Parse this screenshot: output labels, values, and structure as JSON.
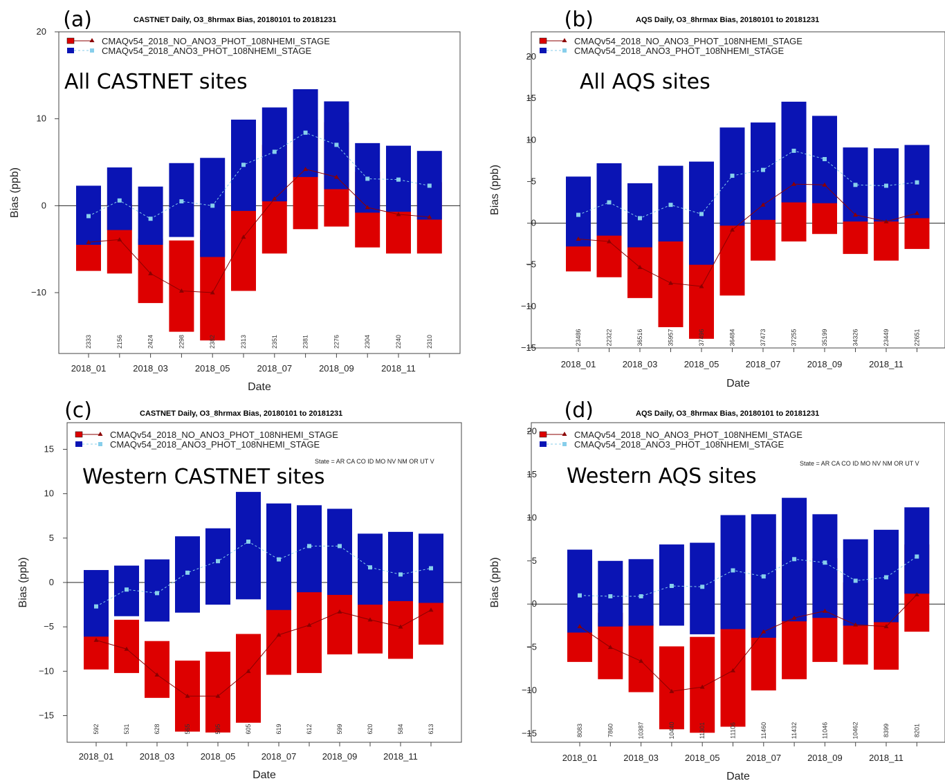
{
  "legend": {
    "series_red": "CMAQv54_2018_NO_ANO3_PHOT_108NHEMI_STAGE",
    "series_blue": "CMAQv54_2018_ANO3_PHOT_108NHEMI_STAGE"
  },
  "colors": {
    "red_box": "#dd0000",
    "blue_box": "#0a14b4",
    "red_line": "#8b0000",
    "blue_line": "#87ceeb"
  },
  "chart_data": [
    {
      "type": "bar",
      "panel_label": "(a)",
      "title": "CASTNET Daily, O3_8hrmax Bias, 20180101 to 20181231",
      "annotation": "All CASTNET sites",
      "xlabel": "Date",
      "ylabel": "Bias (ppb)",
      "ylim": [
        -17,
        20
      ],
      "yticks": [
        -10,
        0,
        10,
        20
      ],
      "xtick_labels": [
        "2018_01",
        "2018_03",
        "2018_05",
        "2018_07",
        "2018_09",
        "2018_11"
      ],
      "categories": [
        "2018_01",
        "2018_02",
        "2018_03",
        "2018_04",
        "2018_05",
        "2018_06",
        "2018_07",
        "2018_08",
        "2018_09",
        "2018_10",
        "2018_11",
        "2018_12"
      ],
      "counts": [
        "2333",
        "2156",
        "2424",
        "2298",
        "2382",
        "2313",
        "2351",
        "2381",
        "2276",
        "2304",
        "2240",
        "2310"
      ],
      "series": [
        {
          "name": "CMAQv54_2018_NO_ANO3_PHOT_108NHEMI_STAGE",
          "low": [
            -7.5,
            -7.8,
            -11.2,
            -14.5,
            -15.5,
            -9.8,
            -5.5,
            -2.7,
            -2.4,
            -4.8,
            -5.5,
            -5.5
          ],
          "high": [
            -0.5,
            0.2,
            -3.8,
            -4.0,
            -2.8,
            3.6,
            7.0,
            9.9,
            9.6,
            3.9,
            3.1,
            2.7
          ],
          "median": [
            -4.2,
            -3.9,
            -7.8,
            -9.8,
            -10.0,
            -3.6,
            0.8,
            4.2,
            3.3,
            -0.2,
            -1.0,
            -1.3
          ]
        },
        {
          "name": "CMAQv54_2018_ANO3_PHOT_108NHEMI_STAGE",
          "low": [
            -4.5,
            -2.8,
            -4.5,
            -3.6,
            -5.9,
            -0.6,
            0.5,
            3.3,
            1.9,
            -0.8,
            -0.7,
            -1.6
          ],
          "high": [
            2.3,
            4.4,
            2.2,
            4.9,
            5.5,
            9.9,
            11.3,
            13.4,
            12.0,
            7.2,
            6.9,
            6.3
          ],
          "median": [
            -1.2,
            0.6,
            -1.5,
            0.5,
            0.0,
            4.7,
            6.2,
            8.4,
            7.0,
            3.1,
            3.0,
            2.3
          ]
        }
      ]
    },
    {
      "type": "bar",
      "panel_label": "(b)",
      "title": "AQS Daily, O3_8hrmax Bias, 20180101 to 20181231",
      "annotation": "All AQS sites",
      "xlabel": "Date",
      "ylabel": "Bias (ppb)",
      "ylim": [
        -15,
        23
      ],
      "yticks": [
        -15,
        -10,
        -5,
        0,
        5,
        10,
        15,
        20
      ],
      "xtick_labels": [
        "2018_01",
        "2018_03",
        "2018_05",
        "2018_07",
        "2018_09",
        "2018_11"
      ],
      "categories": [
        "2018_01",
        "2018_02",
        "2018_03",
        "2018_04",
        "2018_05",
        "2018_06",
        "2018_07",
        "2018_08",
        "2018_09",
        "2018_10",
        "2018_11",
        "2018_12"
      ],
      "counts": [
        "23486",
        "22322",
        "36516",
        "35957",
        "37496",
        "36484",
        "37473",
        "37255",
        "35199",
        "34326",
        "23449",
        "22651"
      ],
      "series": [
        {
          "name": "CMAQv54_2018_NO_ANO3_PHOT_108NHEMI_STAGE",
          "low": [
            -5.8,
            -6.5,
            -9.0,
            -12.5,
            -13.9,
            -8.7,
            -4.5,
            -2.2,
            -1.3,
            -3.7,
            -4.5,
            -3.1
          ],
          "high": [
            2.8,
            2.4,
            -0.9,
            -1.5,
            0.0,
            6.3,
            8.3,
            10.9,
            10.5,
            5.7,
            4.9,
            5.8
          ],
          "median": [
            -1.9,
            -2.2,
            -5.3,
            -7.2,
            -7.6,
            -0.8,
            2.2,
            4.7,
            4.6,
            1.0,
            0.2,
            1.2
          ]
        },
        {
          "name": "CMAQv54_2018_ANO3_PHOT_108NHEMI_STAGE",
          "low": [
            -2.8,
            -1.5,
            -2.9,
            -2.2,
            -5.0,
            -0.3,
            0.4,
            2.5,
            2.4,
            0.2,
            0.2,
            0.6
          ],
          "high": [
            5.6,
            7.2,
            4.8,
            6.9,
            7.4,
            11.5,
            12.1,
            14.6,
            12.9,
            9.1,
            9.0,
            9.4
          ],
          "median": [
            1.0,
            2.5,
            0.6,
            2.2,
            1.1,
            5.7,
            6.4,
            8.7,
            7.7,
            4.6,
            4.5,
            4.9
          ]
        }
      ]
    },
    {
      "type": "bar",
      "panel_label": "(c)",
      "title": "CASTNET Daily, O3_8hrmax Bias, 20180101 to 20181231",
      "annotation": "Western CASTNET sites",
      "state_note": "State = AR CA CO ID MO NV NM OR UT V",
      "xlabel": "Date",
      "ylabel": "Bias (ppb)",
      "ylim": [
        -18,
        18
      ],
      "yticks": [
        -15,
        -10,
        -5,
        0,
        5,
        10,
        15
      ],
      "xtick_labels": [
        "2018_01",
        "2018_03",
        "2018_05",
        "2018_07",
        "2018_09",
        "2018_11"
      ],
      "categories": [
        "2018_01",
        "2018_02",
        "2018_03",
        "2018_04",
        "2018_05",
        "2018_06",
        "2018_07",
        "2018_08",
        "2018_09",
        "2018_10",
        "2018_11",
        "2018_12"
      ],
      "counts": [
        "592",
        "531",
        "628",
        "565",
        "595",
        "605",
        "619",
        "612",
        "599",
        "620",
        "584",
        "613"
      ],
      "series": [
        {
          "name": "CMAQv54_2018_NO_ANO3_PHOT_108NHEMI_STAGE",
          "low": [
            -9.8,
            -10.2,
            -13.0,
            -16.8,
            -16.9,
            -15.8,
            -10.4,
            -10.2,
            -8.1,
            -8.0,
            -8.6,
            -7.0
          ],
          "high": [
            -3.0,
            -4.2,
            -6.6,
            -8.8,
            -7.8,
            -5.8,
            -1.3,
            -0.7,
            0.5,
            -0.3,
            -0.4,
            0.9
          ],
          "median": [
            -6.5,
            -7.5,
            -10.4,
            -12.8,
            -12.8,
            -10.0,
            -5.9,
            -4.8,
            -3.3,
            -4.2,
            -5.0,
            -3.1
          ]
        },
        {
          "name": "CMAQv54_2018_ANO3_PHOT_108NHEMI_STAGE",
          "low": [
            -6.1,
            -3.8,
            -4.4,
            -3.4,
            -2.5,
            -1.9,
            -3.1,
            -1.1,
            -1.4,
            -2.5,
            -2.1,
            -2.3
          ],
          "high": [
            1.4,
            1.9,
            2.6,
            5.2,
            6.1,
            10.2,
            8.9,
            8.7,
            8.3,
            5.5,
            5.7,
            5.5
          ],
          "median": [
            -2.7,
            -0.8,
            -1.2,
            1.1,
            2.4,
            4.6,
            2.6,
            4.1,
            4.1,
            1.7,
            0.9,
            1.6
          ]
        }
      ]
    },
    {
      "type": "bar",
      "panel_label": "(d)",
      "title": "AQS Daily, O3_8hrmax Bias, 20180101 to 20181231",
      "annotation": "Western AQS sites",
      "state_note": "State = AR CA CO ID MO NV NM OR UT V",
      "xlabel": "Date",
      "ylabel": "Bias (ppb)",
      "ylim": [
        -16,
        21
      ],
      "yticks": [
        -15,
        -10,
        -5,
        0,
        5,
        10,
        15,
        20
      ],
      "xtick_labels": [
        "2018_01",
        "2018_03",
        "2018_05",
        "2018_07",
        "2018_09",
        "2018_11"
      ],
      "categories": [
        "2018_01",
        "2018_02",
        "2018_03",
        "2018_04",
        "2018_05",
        "2018_06",
        "2018_07",
        "2018_08",
        "2018_09",
        "2018_10",
        "2018_11",
        "2018_12"
      ],
      "counts": [
        "8083",
        "7860",
        "10387",
        "10440",
        "11301",
        "11106",
        "11460",
        "11432",
        "11046",
        "10462",
        "8399",
        "8201"
      ],
      "series": [
        {
          "name": "CMAQv54_2018_NO_ANO3_PHOT_108NHEMI_STAGE",
          "low": [
            -6.7,
            -8.7,
            -10.2,
            -14.5,
            -14.9,
            -14.2,
            -10.0,
            -8.7,
            -6.7,
            -7.0,
            -7.6,
            -3.2
          ],
          "high": [
            2.8,
            -1.0,
            -2.3,
            -4.9,
            -3.8,
            -0.7,
            3.9,
            6.2,
            5.3,
            2.5,
            3.0,
            6.9
          ],
          "median": [
            -2.6,
            -5.0,
            -6.6,
            -10.1,
            -9.6,
            -7.7,
            -3.2,
            -1.6,
            -0.8,
            -2.4,
            -2.6,
            1.1
          ]
        },
        {
          "name": "CMAQv54_2018_ANO3_PHOT_108NHEMI_STAGE",
          "low": [
            -3.3,
            -2.6,
            -2.5,
            -2.5,
            -3.5,
            -2.9,
            -3.9,
            -2.0,
            -1.6,
            -2.5,
            -2.1,
            1.2
          ],
          "high": [
            6.3,
            5.0,
            5.2,
            6.9,
            7.1,
            10.3,
            10.4,
            12.3,
            10.4,
            7.5,
            8.6,
            11.2
          ],
          "median": [
            1.0,
            0.9,
            0.9,
            2.1,
            2.0,
            3.9,
            3.2,
            5.2,
            4.8,
            2.7,
            3.1,
            5.5
          ]
        }
      ]
    }
  ]
}
